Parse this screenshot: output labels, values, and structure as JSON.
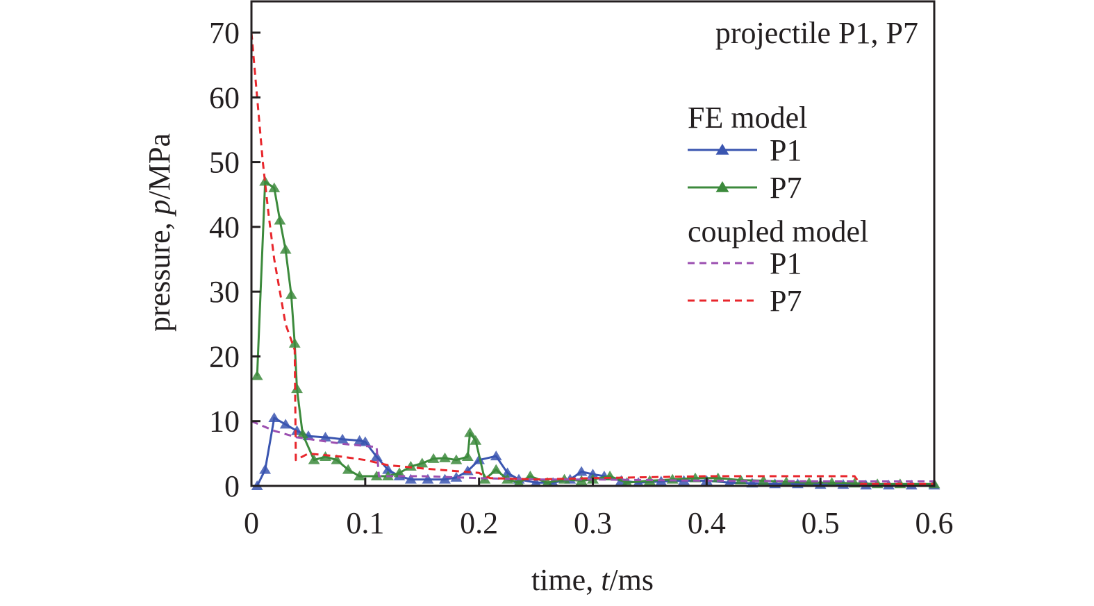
{
  "chart_data": {
    "type": "line",
    "title": "",
    "annotation": "projectile P1, P7",
    "xlabel": "time, t/ms",
    "xlabel_parts": {
      "pre": "time, ",
      "italic": "t",
      "post": "/ms"
    },
    "ylabel": "pressure, p/MPa",
    "ylabel_parts": {
      "pre": "pressure, ",
      "italic": "p",
      "post": "/MPa"
    },
    "xlim": [
      0,
      0.6
    ],
    "ylim": [
      0,
      70
    ],
    "xticks": [
      "0",
      "0.1",
      "0.2",
      "0.3",
      "0.4",
      "0.5",
      "0.6"
    ],
    "yticks": [
      "0",
      "10",
      "20",
      "30",
      "40",
      "50",
      "60",
      "70"
    ],
    "grid": false,
    "legend_placement": "top-right",
    "legend_groups": [
      "FE model",
      "coupled model"
    ],
    "series": [
      {
        "name": "P1",
        "group": "FE model",
        "color": "#3a55b0",
        "style": "solid",
        "marker": "triangle",
        "x": [
          0.005,
          0.012,
          0.02,
          0.03,
          0.04,
          0.05,
          0.065,
          0.08,
          0.095,
          0.1,
          0.11,
          0.12,
          0.13,
          0.14,
          0.155,
          0.17,
          0.18,
          0.19,
          0.2,
          0.215,
          0.225,
          0.235,
          0.25,
          0.265,
          0.28,
          0.29,
          0.3,
          0.31,
          0.325,
          0.34,
          0.36,
          0.38,
          0.4,
          0.42,
          0.44,
          0.46,
          0.48,
          0.5,
          0.52,
          0.54,
          0.56,
          0.58,
          0.6
        ],
        "y": [
          0,
          2.5,
          10.5,
          9.5,
          8.5,
          7.7,
          7.5,
          7.2,
          7,
          6.8,
          4.5,
          2.5,
          1.5,
          1,
          1,
          1,
          1.3,
          2.3,
          4,
          4.6,
          2,
          1,
          0.5,
          0.5,
          1,
          2.2,
          1.8,
          1.5,
          0.8,
          0.5,
          0.7,
          0.8,
          0.8,
          0.5,
          0.4,
          0.3,
          0.3,
          0.2,
          0.2,
          0.1,
          0.1,
          0.1,
          0.1
        ]
      },
      {
        "name": "P7",
        "group": "FE model",
        "color": "#3c8a3c",
        "style": "solid",
        "marker": "triangle",
        "x": [
          0.005,
          0.012,
          0.02,
          0.025,
          0.03,
          0.035,
          0.038,
          0.04,
          0.045,
          0.055,
          0.065,
          0.075,
          0.085,
          0.095,
          0.11,
          0.12,
          0.13,
          0.14,
          0.15,
          0.16,
          0.17,
          0.18,
          0.19,
          0.192,
          0.197,
          0.205,
          0.215,
          0.225,
          0.235,
          0.245,
          0.26,
          0.275,
          0.29,
          0.3,
          0.315,
          0.33,
          0.35,
          0.37,
          0.39,
          0.41,
          0.43,
          0.45,
          0.47,
          0.49,
          0.51,
          0.53,
          0.55,
          0.57,
          0.6
        ],
        "y": [
          17,
          47,
          46,
          41,
          36.5,
          29.5,
          22,
          15,
          8,
          4,
          4.5,
          4,
          2.5,
          1.5,
          1.5,
          1.5,
          2,
          3,
          3.5,
          4.2,
          4.3,
          4,
          4.5,
          8.2,
          7,
          1,
          2.5,
          1,
          0.5,
          1.5,
          0.5,
          1,
          0.8,
          1,
          1.5,
          0.5,
          0.8,
          1,
          1.2,
          1.2,
          0.9,
          0.8,
          0.6,
          0.5,
          0.5,
          0.4,
          0.3,
          0.3,
          0.3
        ]
      },
      {
        "name": "P1",
        "group": "coupled model",
        "color": "#9b4fb0",
        "style": "dashed",
        "marker": "none",
        "x": [
          0,
          0.02,
          0.04,
          0.06,
          0.08,
          0.11,
          0.112,
          0.15,
          0.2,
          0.25,
          0.3,
          0.4,
          0.5,
          0.6
        ],
        "y": [
          10,
          8.5,
          7.5,
          7,
          6.5,
          6,
          1.5,
          1.5,
          1.2,
          1,
          1,
          0.8,
          0.7,
          0.7
        ]
      },
      {
        "name": "P7",
        "group": "coupled model",
        "color": "#e8262c",
        "style": "dashed",
        "marker": "none",
        "x": [
          0,
          0.005,
          0.01,
          0.015,
          0.02,
          0.03,
          0.038,
          0.039,
          0.05,
          0.08,
          0.1,
          0.12,
          0.15,
          0.2,
          0.205,
          0.21,
          0.25,
          0.3,
          0.4,
          0.5,
          0.53,
          0.535,
          0.6
        ],
        "y": [
          70,
          60,
          50,
          42,
          35,
          25,
          21,
          4,
          5,
          4.5,
          4,
          3.2,
          2.7,
          2,
          1.5,
          1.2,
          1,
          1.2,
          1.5,
          1.5,
          1.5,
          0.3,
          0.3
        ]
      }
    ]
  }
}
